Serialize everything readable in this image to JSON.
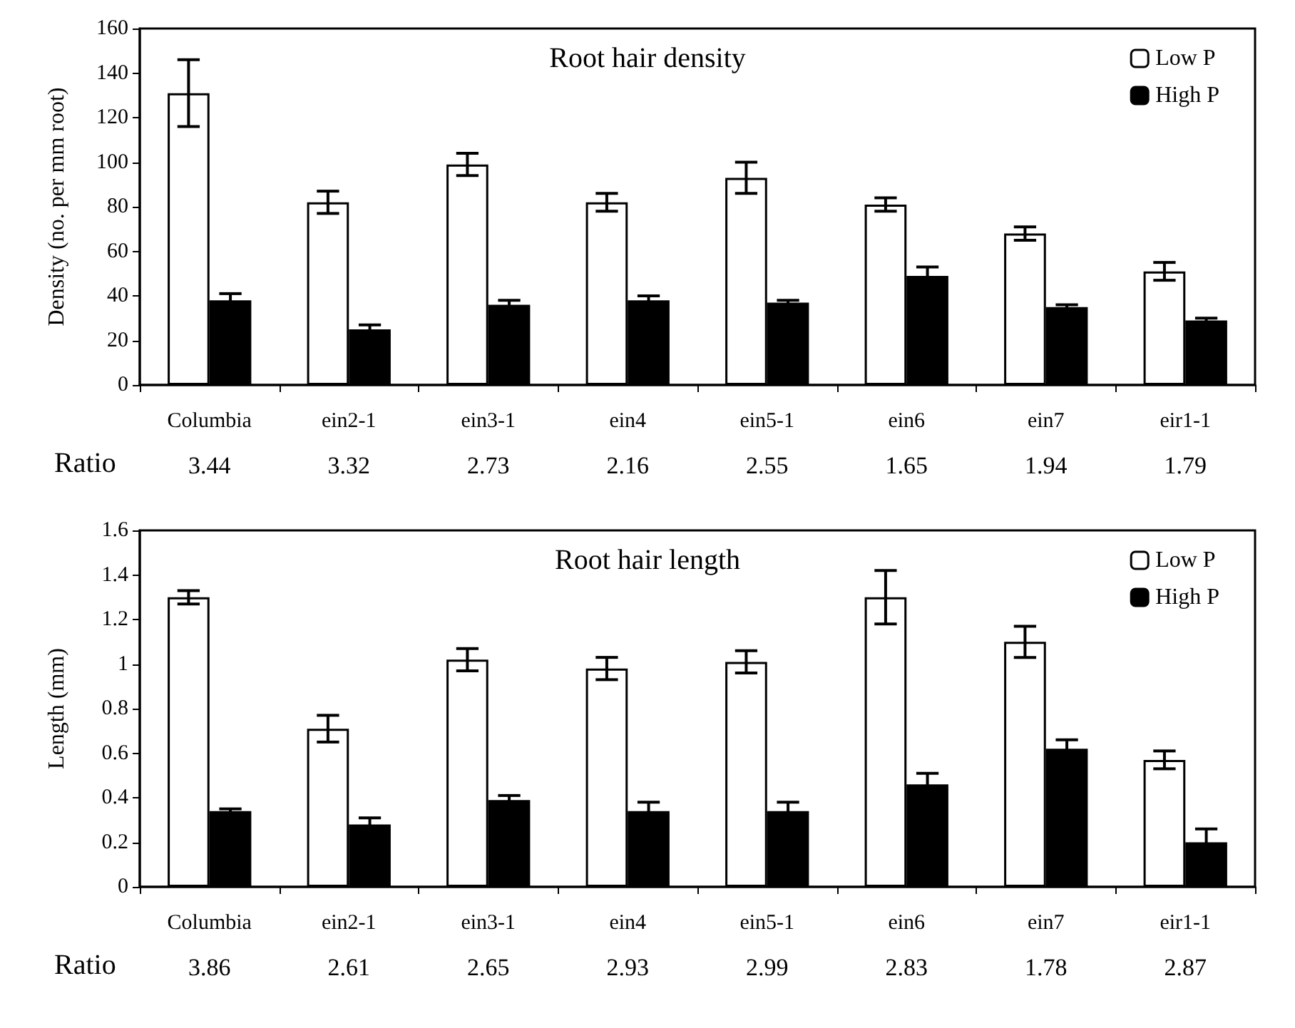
{
  "chart_data": [
    {
      "type": "bar",
      "title": "Root hair density",
      "ylabel": "Density (no. per mm root)",
      "categories": [
        "Columbia",
        "ein2-1",
        "ein3-1",
        "ein4",
        "ein5-1",
        "ein6",
        "ein7",
        "eir1-1"
      ],
      "series": [
        {
          "name": "Low P",
          "color": "#ffffff",
          "values": [
            131,
            82,
            99,
            82,
            93,
            81,
            68,
            51
          ],
          "errors": [
            15,
            5,
            5,
            4,
            7,
            3,
            3,
            4
          ]
        },
        {
          "name": "High P",
          "color": "#000000",
          "values": [
            38,
            25,
            36,
            38,
            37,
            49,
            35,
            29
          ],
          "errors": [
            3,
            2,
            2,
            2,
            1,
            4,
            1,
            1
          ]
        }
      ],
      "ylim": [
        0,
        160
      ],
      "yticks": [
        0,
        20,
        40,
        60,
        80,
        100,
        120,
        140,
        160
      ],
      "grid": false,
      "legend": "top right",
      "annotations": [
        "Ratio",
        "3.44",
        "3.32",
        "2.73",
        "2.16",
        "2.55",
        "1.65",
        "1.94",
        "1.79"
      ]
    },
    {
      "type": "bar",
      "title": "Root hair length",
      "ylabel": "Length (mm)",
      "categories": [
        "Columbia",
        "ein2-1",
        "ein3-1",
        "ein4",
        "ein5-1",
        "ein6",
        "ein7",
        "eir1-1"
      ],
      "series": [
        {
          "name": "Low P",
          "color": "#ffffff",
          "values": [
            1.3,
            0.71,
            1.02,
            0.98,
            1.01,
            1.3,
            1.1,
            0.57
          ],
          "errors": [
            0.03,
            0.06,
            0.05,
            0.05,
            0.05,
            0.12,
            0.07,
            0.04
          ]
        },
        {
          "name": "High P",
          "color": "#000000",
          "values": [
            0.34,
            0.28,
            0.39,
            0.34,
            0.34,
            0.46,
            0.62,
            0.2
          ],
          "errors": [
            0.01,
            0.03,
            0.02,
            0.04,
            0.04,
            0.05,
            0.04,
            0.06
          ]
        }
      ],
      "ylim": [
        0,
        1.6
      ],
      "yticks": [
        0,
        0.2,
        0.4,
        0.6,
        0.8,
        1,
        1.2,
        1.4,
        1.6
      ],
      "grid": false,
      "legend": "top right",
      "annotations": [
        "Ratio",
        "3.86",
        "2.61",
        "2.65",
        "2.93",
        "2.99",
        "2.83",
        "1.78",
        "2.87"
      ]
    }
  ]
}
